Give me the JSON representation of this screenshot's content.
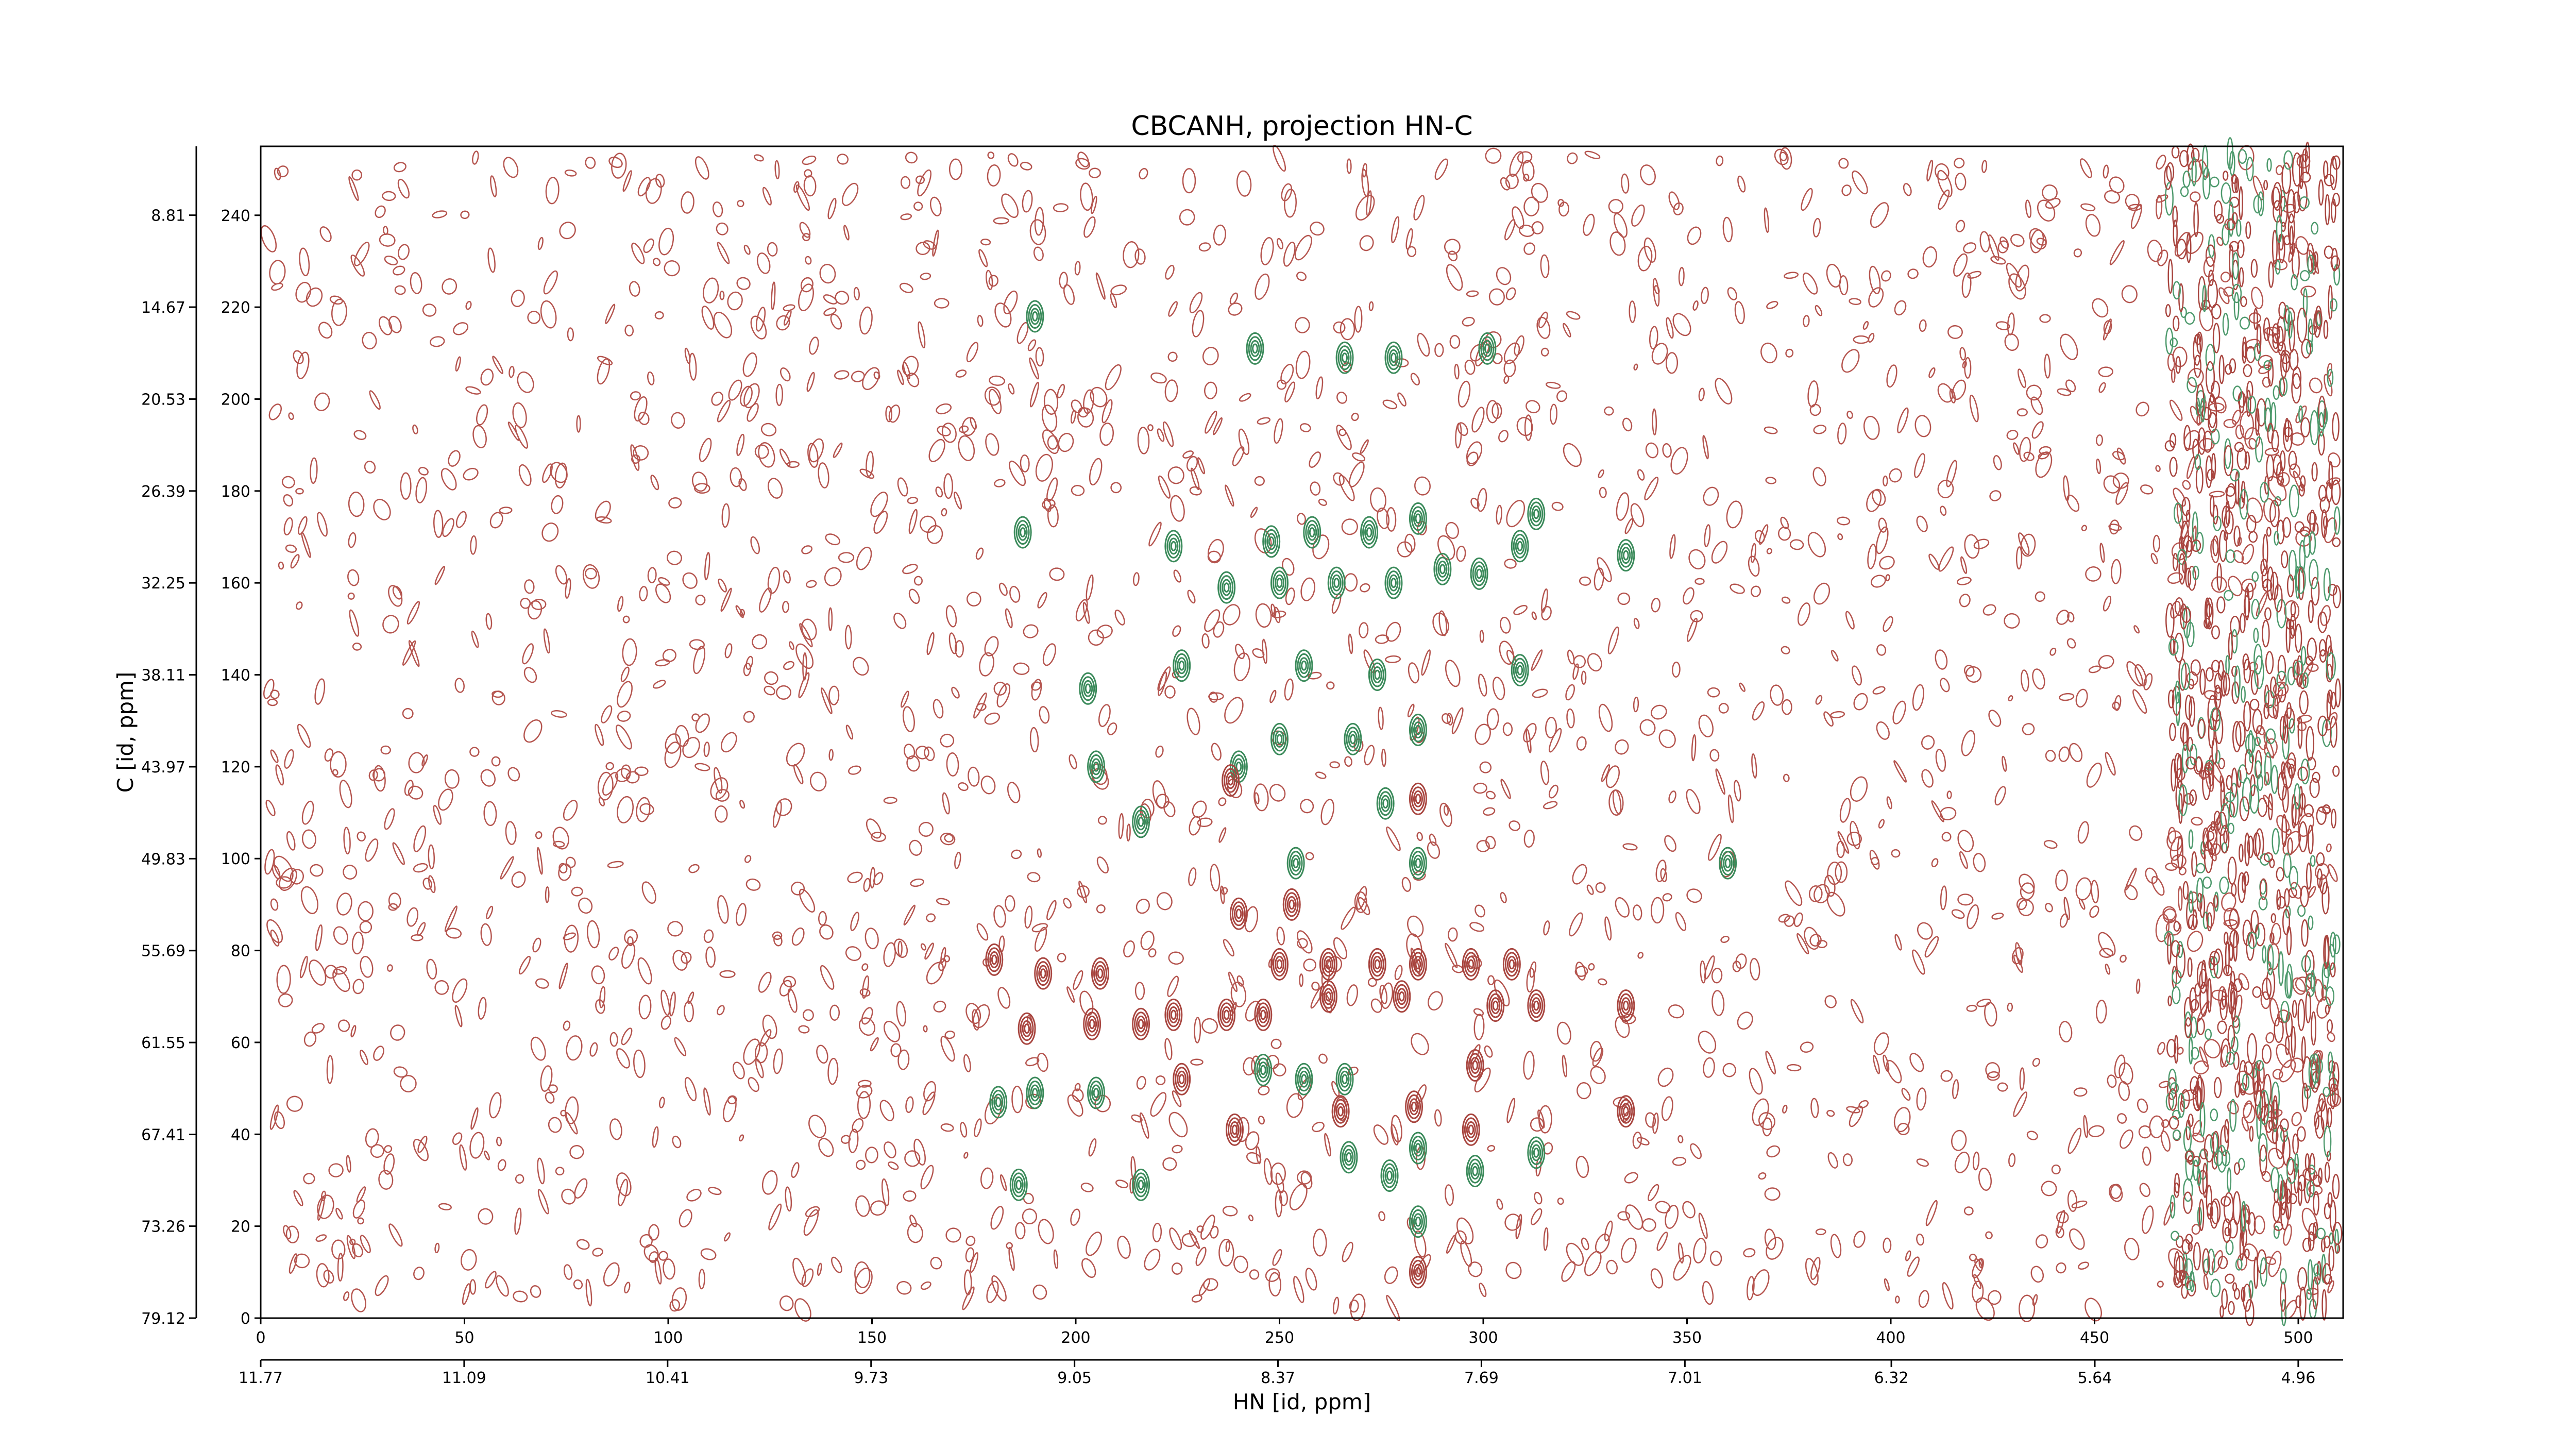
{
  "chart_data": {
    "type": "contour",
    "title": "CBCANH, projection HN-C",
    "xlabel": "HN [id, ppm]",
    "ylabel": "C [id, ppm]",
    "xlim": [
      0,
      511
    ],
    "ylim": [
      0,
      255
    ],
    "xticks": [
      0,
      50,
      100,
      150,
      200,
      250,
      300,
      350,
      400,
      450,
      500
    ],
    "yticks": [
      0,
      20,
      40,
      60,
      80,
      100,
      120,
      140,
      160,
      180,
      200,
      220,
      240
    ],
    "x2lim": [
      11.77,
      4.81
    ],
    "x2ticks": [
      11.77,
      11.09,
      10.41,
      9.73,
      9.05,
      8.37,
      7.69,
      7.01,
      6.32,
      5.64,
      4.96
    ],
    "y2lim": [
      79.12,
      4.42
    ],
    "y2ticks": [
      79.12,
      73.26,
      67.41,
      61.55,
      55.69,
      49.83,
      43.97,
      38.11,
      32.25,
      26.39,
      20.53,
      14.67,
      8.81
    ],
    "series": [
      {
        "color": "#3a8a5a",
        "x": [
          190,
          244,
          266,
          278,
          301,
          187,
          224,
          248,
          258,
          272,
          284,
          313,
          335,
          237,
          250,
          264,
          278,
          290,
          299,
          309,
          226,
          256,
          274,
          309,
          203,
          250,
          268,
          284,
          205,
          240,
          276,
          216,
          254,
          284,
          360,
          246,
          256,
          266,
          181,
          190,
          205,
          284,
          267,
          277,
          298,
          313,
          186,
          216,
          284
        ],
        "y": [
          218,
          211,
          209,
          209,
          211,
          171,
          168,
          169,
          171,
          171,
          174,
          175,
          166,
          159,
          160,
          160,
          160,
          163,
          162,
          168,
          142,
          142,
          140,
          141,
          137,
          126,
          126,
          128,
          120,
          120,
          112,
          108,
          99,
          99,
          99,
          54,
          52,
          52,
          47,
          49,
          49,
          37,
          35,
          31,
          32,
          36,
          29,
          29,
          21
        ]
      },
      {
        "color": "#a8453f",
        "x": [
          180,
          192,
          206,
          188,
          204,
          216,
          224,
          240,
          253,
          250,
          262,
          274,
          284,
          297,
          307,
          246,
          262,
          280,
          303,
          313,
          335,
          237,
          226,
          239,
          265,
          283,
          298,
          297,
          335,
          284,
          238,
          284
        ],
        "y": [
          78,
          75,
          75,
          63,
          64,
          64,
          66,
          88,
          90,
          77,
          77,
          77,
          77,
          77,
          77,
          66,
          70,
          70,
          68,
          68,
          68,
          66,
          52,
          41,
          45,
          46,
          55,
          41,
          45,
          113,
          117,
          10
        ]
      }
    ]
  }
}
